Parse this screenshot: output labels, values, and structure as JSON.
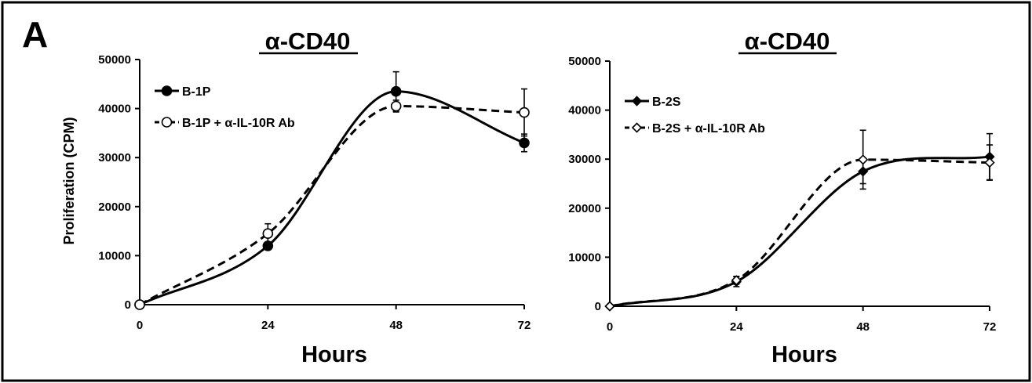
{
  "panel_label": "A",
  "chart_data": [
    {
      "type": "line",
      "title": "α-CD40",
      "xlabel": "Hours",
      "ylabel": "Proliferation (CPM)",
      "x": [
        0,
        24,
        48,
        72
      ],
      "xticks": [
        "0",
        "24",
        "48",
        "72"
      ],
      "xlim": [
        0,
        72
      ],
      "ylim": [
        0,
        50000
      ],
      "yticks": [
        "0",
        "10000",
        "20000",
        "30000",
        "40000",
        "50000"
      ],
      "grid": false,
      "legend_position": "top-left",
      "series": [
        {
          "name": "B-1P",
          "values": [
            0,
            12000,
            43500,
            33000
          ],
          "error": [
            0,
            0,
            4000,
            1800
          ],
          "marker": "filled-circle",
          "line": "solid"
        },
        {
          "name": "B-1P + α-IL-10R Ab",
          "values": [
            0,
            14500,
            40500,
            39200
          ],
          "error": [
            0,
            2000,
            1200,
            4800
          ],
          "marker": "open-circle",
          "line": "dashed"
        }
      ]
    },
    {
      "type": "line",
      "title": "α-CD40",
      "xlabel": "Hours",
      "ylabel": "",
      "x": [
        0,
        24,
        48,
        72
      ],
      "xticks": [
        "0",
        "24",
        "48",
        "72"
      ],
      "xlim": [
        0,
        72
      ],
      "ylim": [
        0,
        50000
      ],
      "yticks": [
        "0",
        "10000",
        "20000",
        "30000",
        "40000",
        "50000"
      ],
      "grid": false,
      "legend_position": "top-left",
      "series": [
        {
          "name": "B-2S",
          "values": [
            0,
            5000,
            27500,
            30500
          ],
          "error": [
            0,
            1000,
            2500,
            4700
          ],
          "marker": "filled-diamond",
          "line": "solid"
        },
        {
          "name": "B-2S + α-IL-10R Ab",
          "values": [
            0,
            5300,
            29900,
            29300
          ],
          "error": [
            0,
            800,
            6000,
            3600
          ],
          "marker": "open-diamond",
          "line": "dashed"
        }
      ]
    }
  ]
}
